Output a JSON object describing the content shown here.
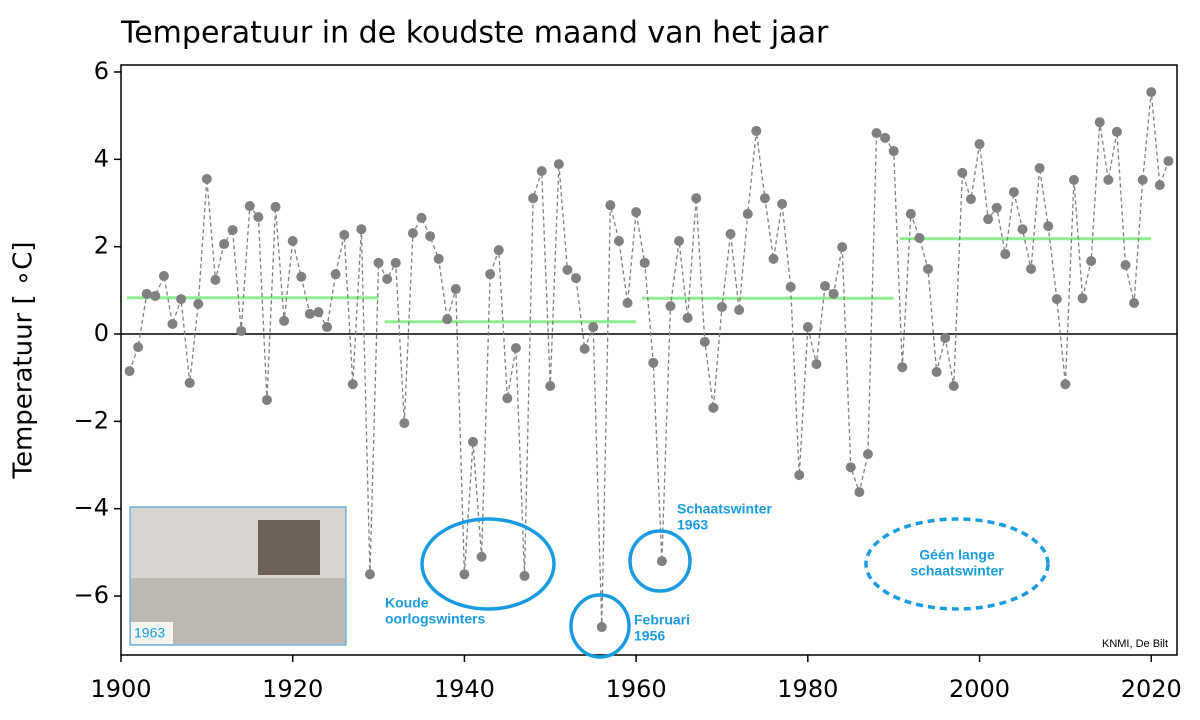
{
  "chart_data": {
    "type": "line",
    "title": "Temperatuur in de koudste maand van het jaar",
    "y_label": "Temperatuur [ ∘C]",
    "x": [
      1901,
      1902,
      1903,
      1904,
      1905,
      1906,
      1907,
      1908,
      1909,
      1910,
      1911,
      1912,
      1913,
      1914,
      1915,
      1916,
      1917,
      1918,
      1919,
      1920,
      1921,
      1922,
      1923,
      1924,
      1925,
      1926,
      1927,
      1928,
      1929,
      1930,
      1931,
      1932,
      1933,
      1934,
      1935,
      1936,
      1937,
      1938,
      1939,
      1940,
      1941,
      1942,
      1943,
      1944,
      1945,
      1946,
      1947,
      1948,
      1949,
      1950,
      1951,
      1952,
      1953,
      1954,
      1955,
      1956,
      1957,
      1958,
      1959,
      1960,
      1961,
      1962,
      1963,
      1964,
      1965,
      1966,
      1967,
      1968,
      1969,
      1970,
      1971,
      1972,
      1973,
      1974,
      1975,
      1976,
      1977,
      1978,
      1979,
      1980,
      1981,
      1982,
      1983,
      1984,
      1985,
      1986,
      1987,
      1988,
      1989,
      1990,
      1991,
      1992,
      1993,
      1994,
      1995,
      1996,
      1997,
      1998,
      1999,
      2000,
      2001,
      2002,
      2003,
      2004,
      2005,
      2006,
      2007,
      2008,
      2009,
      2010,
      2011,
      2012,
      2013,
      2014,
      2015,
      2016,
      2017,
      2018,
      2019,
      2020,
      2021,
      2022
    ],
    "values": [
      -0.85,
      -0.3,
      0.92,
      0.87,
      1.33,
      0.23,
      0.8,
      -1.12,
      0.69,
      3.55,
      1.24,
      2.06,
      2.38,
      0.07,
      2.93,
      2.68,
      -1.51,
      2.91,
      0.3,
      2.13,
      1.31,
      0.46,
      0.5,
      0.16,
      1.37,
      2.27,
      -1.15,
      2.4,
      -5.5,
      1.63,
      1.26,
      1.63,
      -2.04,
      2.31,
      2.66,
      2.24,
      1.72,
      0.34,
      1.03,
      -5.5,
      -2.47,
      -5.1,
      1.37,
      1.92,
      -1.47,
      -0.32,
      -5.54,
      3.11,
      3.73,
      -1.19,
      3.89,
      1.47,
      1.28,
      -0.34,
      0.16,
      -6.71,
      2.95,
      2.13,
      0.71,
      2.79,
      1.63,
      -0.66,
      -5.2,
      0.64,
      2.13,
      0.37,
      3.11,
      -0.18,
      -1.69,
      0.62,
      2.29,
      0.55,
      2.75,
      4.65,
      3.11,
      1.72,
      2.98,
      1.08,
      -3.23,
      0.16,
      -0.69,
      1.1,
      0.92,
      1.99,
      -3.05,
      -3.62,
      -2.75,
      4.6,
      4.49,
      4.19,
      -0.76,
      2.75,
      2.2,
      1.49,
      -0.87,
      -0.09,
      -1.19,
      3.69,
      3.09,
      4.35,
      2.63,
      2.89,
      1.83,
      3.25,
      2.4,
      1.49,
      3.8,
      2.47,
      0.8,
      -1.15,
      3.53,
      0.82,
      1.67,
      4.85,
      3.53,
      4.63,
      1.58,
      0.71,
      3.53,
      5.54,
      3.41,
      3.96
    ],
    "color": "#808080",
    "period_means": [
      {
        "start": 1901,
        "end": 1930,
        "value": 0.83
      },
      {
        "start": 1931,
        "end": 1960,
        "value": 0.28
      },
      {
        "start": 1961,
        "end": 1990,
        "value": 0.82
      },
      {
        "start": 1991,
        "end": 2020,
        "value": 2.18
      }
    ],
    "period_color": "#90ee90",
    "xlim": [
      1900,
      2023
    ],
    "ylim": [
      -7.35,
      6.16
    ],
    "xticks": [
      1900,
      1920,
      1940,
      1960,
      1980,
      2000,
      2020
    ],
    "yticks": [
      {
        "value": -6,
        "label": "−6"
      },
      {
        "value": -4,
        "label": "−4"
      },
      {
        "value": -2,
        "label": "−2"
      },
      0,
      2,
      4,
      6
    ],
    "zero_line": true,
    "annotations": [
      {
        "lines": [
          "Koude",
          "oorlogswinters"
        ]
      },
      {
        "lines": [
          "Februari",
          "1956"
        ]
      },
      {
        "lines": [
          "Schaatswinter",
          "1963"
        ]
      },
      {
        "lines": [
          "Géén lange",
          "schaatswinter"
        ]
      }
    ],
    "annotation_color": "#1a9be0",
    "photo_caption": "1963",
    "source": "KNMI, De Bilt"
  }
}
